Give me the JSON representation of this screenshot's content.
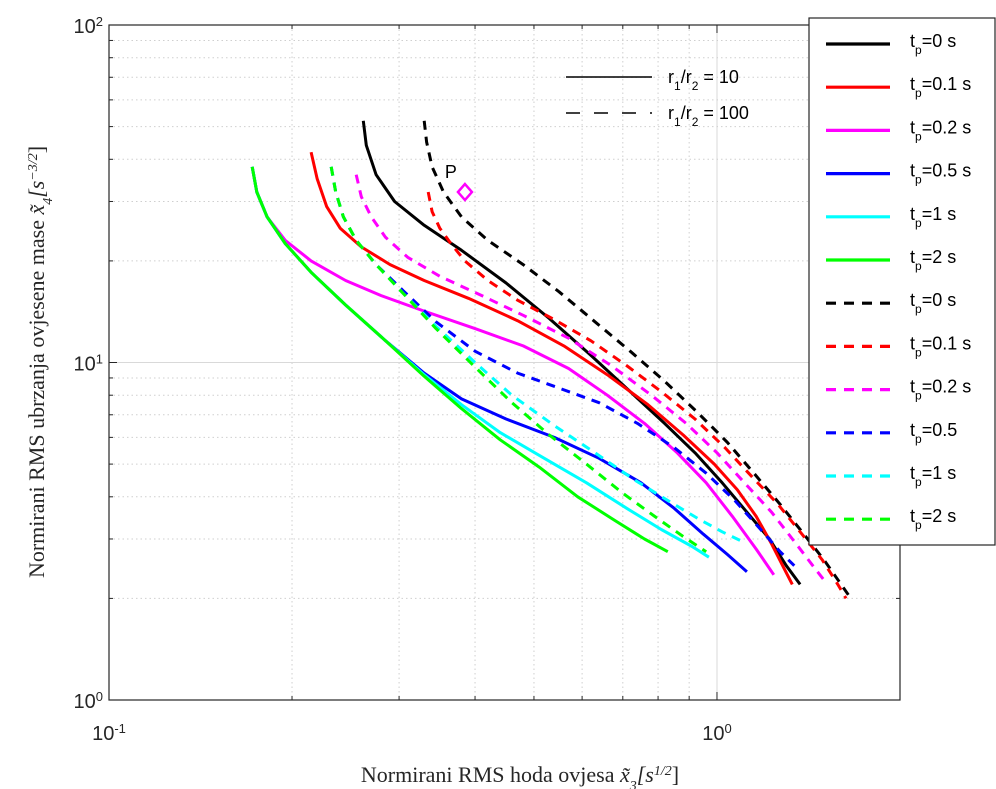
{
  "chart_data": {
    "type": "line",
    "xscale": "log",
    "yscale": "log",
    "xlim": [
      0.1,
      2
    ],
    "ylim": [
      1,
      100
    ],
    "grid": "on",
    "minor_grid": "on",
    "xlabel": {
      "prefix": "Normirani RMS hoda ovjesa ",
      "var": "x̃",
      "sub": "3",
      "bracket_open": "[s",
      "sup": "1/2",
      "bracket_close": "]"
    },
    "ylabel": {
      "prefix": "Normirani RMS ubrzanja ovjesene mase ",
      "var": "x̃",
      "sub": "4",
      "bracket_open": "[s",
      "sup": "−3/2",
      "bracket_close": "]"
    },
    "x_ticks": [
      {
        "value": 0.1,
        "base": "10",
        "exp": "-1"
      },
      {
        "value": 1,
        "base": "10",
        "exp": "0"
      }
    ],
    "y_ticks": [
      {
        "value": 1,
        "base": "10",
        "exp": "0"
      },
      {
        "value": 10,
        "base": "10",
        "exp": "1"
      },
      {
        "value": 100,
        "base": "10",
        "exp": "2"
      }
    ],
    "legend_position": "right",
    "style_key": [
      {
        "dash": "solid",
        "base": "r",
        "sub1": "1",
        "slash": "/r",
        "sub2": "2",
        "value": " = 10"
      },
      {
        "dash": "dashed",
        "base": "r",
        "sub1": "1",
        "slash": "/r",
        "sub2": "2",
        "value": " = 100"
      }
    ],
    "point": {
      "label": "P",
      "x": 0.385,
      "y": 32,
      "color": "#ff00ff"
    },
    "series": [
      {
        "label_base": "t",
        "label_sub": "p",
        "label_rest": "=0 s",
        "color": "#000000",
        "dash": "solid",
        "x": [
          0.262,
          0.265,
          0.275,
          0.295,
          0.33,
          0.38,
          0.45,
          0.53,
          0.62,
          0.72,
          0.82,
          0.92,
          1.02,
          1.12,
          1.22,
          1.3,
          1.37
        ],
        "y": [
          52,
          44,
          36,
          30,
          25.5,
          21.5,
          17.2,
          13.5,
          10.5,
          8.2,
          6.6,
          5.4,
          4.4,
          3.6,
          3.0,
          2.5,
          2.2
        ]
      },
      {
        "label_base": "t",
        "label_sub": "p",
        "label_rest": "=0.1 s",
        "color": "#ff0000",
        "dash": "solid",
        "x": [
          0.215,
          0.22,
          0.228,
          0.24,
          0.26,
          0.29,
          0.33,
          0.39,
          0.47,
          0.56,
          0.66,
          0.77,
          0.88,
          0.99,
          1.08,
          1.16,
          1.23,
          1.29,
          1.33
        ],
        "y": [
          42,
          35,
          29,
          25,
          22,
          19.5,
          17.5,
          15.5,
          13.3,
          11.2,
          9.2,
          7.5,
          6.1,
          5.0,
          4.2,
          3.5,
          2.9,
          2.45,
          2.2
        ]
      },
      {
        "label_base": "t",
        "label_sub": "p",
        "label_rest": "=0.2 s",
        "color": "#ff00ff",
        "dash": "solid",
        "x": [
          0.172,
          0.175,
          0.182,
          0.195,
          0.215,
          0.245,
          0.28,
          0.33,
          0.4,
          0.48,
          0.57,
          0.66,
          0.76,
          0.86,
          0.96,
          1.06,
          1.16,
          1.24
        ],
        "y": [
          38,
          32,
          27,
          23,
          20,
          17.5,
          15.8,
          14.2,
          12.6,
          11.2,
          9.6,
          8.0,
          6.6,
          5.4,
          4.4,
          3.5,
          2.8,
          2.35
        ]
      },
      {
        "label_base": "t",
        "label_sub": "p",
        "label_rest": "=0.5 s",
        "color": "#0000ff",
        "dash": "solid",
        "x": [
          0.172,
          0.175,
          0.182,
          0.195,
          0.215,
          0.245,
          0.285,
          0.33,
          0.38,
          0.45,
          0.54,
          0.64,
          0.75,
          0.85,
          0.95,
          1.04,
          1.12
        ],
        "y": [
          38,
          32,
          27,
          22.5,
          18.5,
          14.8,
          11.6,
          9.3,
          7.8,
          6.8,
          6.0,
          5.2,
          4.4,
          3.7,
          3.1,
          2.7,
          2.4
        ]
      },
      {
        "label_base": "t",
        "label_sub": "p",
        "label_rest": "=1 s",
        "color": "#00ffff",
        "dash": "solid",
        "x": [
          0.172,
          0.175,
          0.182,
          0.195,
          0.215,
          0.245,
          0.285,
          0.33,
          0.38,
          0.44,
          0.52,
          0.61,
          0.71,
          0.81,
          0.91,
          0.97
        ],
        "y": [
          38,
          32,
          27,
          22.5,
          18.5,
          14.8,
          11.6,
          9.2,
          7.5,
          6.2,
          5.2,
          4.4,
          3.7,
          3.2,
          2.85,
          2.65
        ]
      },
      {
        "label_base": "t",
        "label_sub": "p",
        "label_rest": "=2 s",
        "color": "#00ff00",
        "dash": "solid",
        "x": [
          0.172,
          0.175,
          0.182,
          0.195,
          0.215,
          0.245,
          0.285,
          0.33,
          0.38,
          0.44,
          0.51,
          0.59,
          0.68,
          0.76,
          0.83
        ],
        "y": [
          38,
          32,
          27,
          22.5,
          18.5,
          14.8,
          11.6,
          9.1,
          7.3,
          5.9,
          4.9,
          4.0,
          3.4,
          3.0,
          2.75
        ]
      },
      {
        "label_base": "t",
        "label_sub": "p",
        "label_rest": "=0 s",
        "color": "#000000",
        "dash": "dashed",
        "x": [
          0.33,
          0.333,
          0.34,
          0.355,
          0.38,
          0.42,
          0.48,
          0.55,
          0.63,
          0.72,
          0.82,
          0.93,
          1.04,
          1.15,
          1.27,
          1.39,
          1.5,
          1.6,
          1.66
        ],
        "y": [
          52,
          45,
          38,
          32,
          27,
          23,
          19.5,
          16.2,
          13.2,
          10.8,
          8.8,
          7.1,
          5.8,
          4.7,
          3.8,
          3.1,
          2.6,
          2.2,
          2.0
        ]
      },
      {
        "label_base": "t",
        "label_sub": "p",
        "label_rest": "=0.1 s",
        "color": "#ff0000",
        "dash": "dashed",
        "x": [
          0.335,
          0.34,
          0.35,
          0.365,
          0.385,
          0.42,
          0.47,
          0.54,
          0.62,
          0.71,
          0.81,
          0.92,
          1.03,
          1.14,
          1.26,
          1.38,
          1.49,
          1.58,
          1.63
        ],
        "y": [
          32,
          28,
          25,
          22.5,
          20,
          17.5,
          15.3,
          13.4,
          11.6,
          9.8,
          8.2,
          6.8,
          5.6,
          4.6,
          3.8,
          3.1,
          2.6,
          2.2,
          2.0
        ]
      },
      {
        "label_base": "t",
        "label_sub": "p",
        "label_rest": "=0.2 s",
        "color": "#ff00ff",
        "dash": "dashed",
        "x": [
          0.255,
          0.26,
          0.27,
          0.285,
          0.31,
          0.35,
          0.41,
          0.48,
          0.57,
          0.67,
          0.78,
          0.89,
          1.0,
          1.11,
          1.23,
          1.35,
          1.45,
          1.52
        ],
        "y": [
          36,
          31,
          27,
          23.5,
          20.5,
          18,
          15.8,
          13.8,
          11.8,
          9.8,
          8.0,
          6.6,
          5.4,
          4.4,
          3.6,
          2.9,
          2.45,
          2.2
        ]
      },
      {
        "label_base": "t",
        "label_sub": "p",
        "label_rest": "=0.5",
        "color": "#0000ff",
        "dash": "dashed",
        "x": [
          0.232,
          0.236,
          0.243,
          0.255,
          0.275,
          0.305,
          0.345,
          0.4,
          0.47,
          0.55,
          0.64,
          0.74,
          0.85,
          0.96,
          1.07,
          1.18,
          1.27,
          1.34
        ],
        "y": [
          38,
          32,
          27,
          23,
          19.5,
          16.3,
          13.2,
          10.8,
          9.3,
          8.4,
          7.6,
          6.6,
          5.6,
          4.7,
          3.9,
          3.2,
          2.75,
          2.5
        ]
      },
      {
        "label_base": "t",
        "label_sub": "p",
        "label_rest": "=1 s",
        "color": "#00ffff",
        "dash": "dashed",
        "x": [
          0.232,
          0.236,
          0.243,
          0.255,
          0.275,
          0.305,
          0.345,
          0.4,
          0.46,
          0.54,
          0.63,
          0.73,
          0.83,
          0.93,
          1.02,
          1.1
        ],
        "y": [
          38,
          32,
          27,
          23,
          19.5,
          16,
          12.8,
          10,
          8.0,
          6.5,
          5.4,
          4.5,
          3.9,
          3.45,
          3.15,
          2.95
        ]
      },
      {
        "label_base": "t",
        "label_sub": "p",
        "label_rest": "=2 s",
        "color": "#00ff00",
        "dash": "dashed",
        "x": [
          0.232,
          0.236,
          0.243,
          0.255,
          0.275,
          0.305,
          0.345,
          0.4,
          0.46,
          0.53,
          0.61,
          0.7,
          0.79,
          0.88,
          0.96
        ],
        "y": [
          38,
          32,
          27,
          23,
          19.5,
          16,
          12.6,
          9.7,
          7.6,
          6.1,
          5.0,
          4.1,
          3.5,
          3.05,
          2.75
        ]
      }
    ]
  }
}
